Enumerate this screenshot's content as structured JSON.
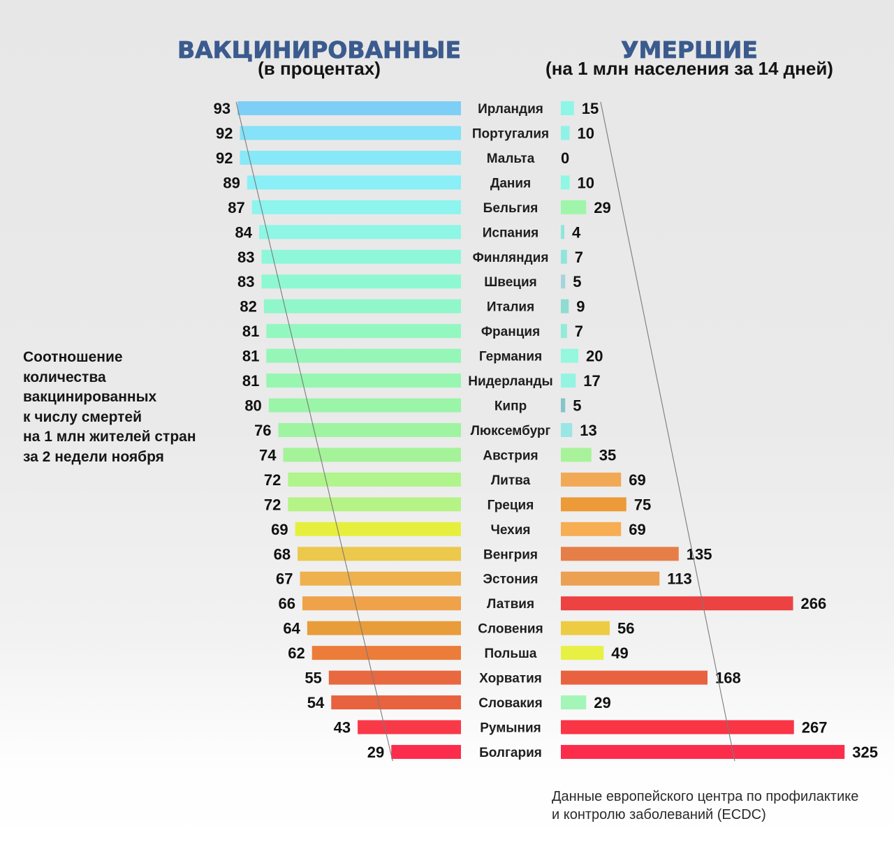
{
  "chart_data": {
    "type": "bar",
    "orientation": "horizontal",
    "categories": [
      "Ирландия",
      "Португалия",
      "Мальта",
      "Дания",
      "Бельгия",
      "Испания",
      "Финляндия",
      "Швеция",
      "Италия",
      "Франция",
      "Германия",
      "Нидерланды",
      "Кипр",
      "Люксембург",
      "Австрия",
      "Литва",
      "Греция",
      "Чехия",
      "Венгрия",
      "Эстония",
      "Латвия",
      "Словения",
      "Польша",
      "Хорватия",
      "Словакия",
      "Румыния",
      "Болгария"
    ],
    "series": [
      {
        "name": "ВАКЦИНИРОВАННЫЕ",
        "subtitle": "(в процентах)",
        "values": [
          93,
          92,
          92,
          89,
          87,
          84,
          83,
          83,
          82,
          81,
          81,
          81,
          80,
          76,
          74,
          72,
          72,
          69,
          68,
          67,
          66,
          64,
          62,
          55,
          54,
          43,
          29
        ],
        "colors": [
          "#7ecff6",
          "#85e2f8",
          "#87e8f7",
          "#8aeff6",
          "#8df4ee",
          "#8ef6e4",
          "#8ef7da",
          "#8ef8d2",
          "#90f7ca",
          "#93f7c0",
          "#95f6b8",
          "#97f6b0",
          "#9af5a8",
          "#9ef4a0",
          "#a4f398",
          "#b0f48c",
          "#b6f386",
          "#e6ef3e",
          "#ecc84c",
          "#eeb14e",
          "#f0a24a",
          "#e89c3a",
          "#ec7c3a",
          "#e8683f",
          "#e8623f",
          "#f93948",
          "#fc2d4c"
        ]
      },
      {
        "name": "УМЕРШИЕ",
        "subtitle": "(на 1 млн населения за 14 дней)",
        "values": [
          15,
          10,
          0,
          10,
          29,
          4,
          7,
          5,
          9,
          7,
          20,
          17,
          5,
          13,
          35,
          69,
          75,
          69,
          135,
          113,
          266,
          56,
          49,
          168,
          29,
          267,
          325
        ],
        "colors": [
          "#8ef6e6",
          "#90f2e6",
          null,
          "#8ef8e4",
          "#9ff5aa",
          "#8ee6dc",
          "#92e4da",
          "#a7d4dc",
          "#8edcd2",
          "#90ecd8",
          "#94f7de",
          "#94f4e2",
          "#86c4cc",
          "#9ae6e4",
          "#a8f39a",
          "#f2a955",
          "#ed9a38",
          "#f7ae52",
          "#e67e48",
          "#eba052",
          "#ec4242",
          "#edcc44",
          "#e8f044",
          "#e86240",
          "#a4f5b8",
          "#f93546",
          "#fc2d4c"
        ]
      }
    ],
    "grid": false,
    "legend": "none",
    "data_labels": true
  },
  "note": [
    "Соотношение",
    "количества",
    "вакцинированных",
    "к числу смертей",
    "на 1 млн жителей стран",
    "за 2 недели ноября"
  ],
  "source": [
    "Данные европейского центра по профилактике",
    "и контролю заболеваний (ECDC)"
  ],
  "colors": {
    "title": "#3b5b8e",
    "trend_line": "#7a7a7a"
  }
}
